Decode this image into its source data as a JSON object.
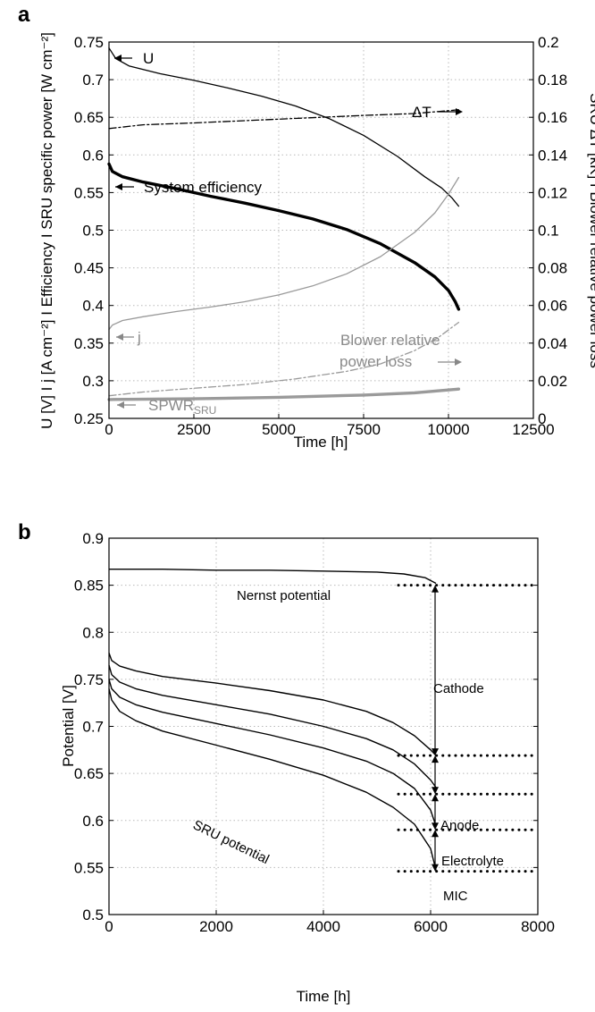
{
  "chart_data": [
    {
      "panel": "a",
      "type": "line",
      "xlabel": "Time [h]",
      "ylabel_left": "U [V] I j [A cm⁻²] I Efficiency I SRU specific power [W cm⁻²]",
      "ylabel_right": "SRU ΔT [kK] I Blower relative power loss",
      "xlim": [
        0,
        12500
      ],
      "ylim_left": [
        0.25,
        0.75
      ],
      "ylim_right": [
        0,
        0.2
      ],
      "xticks": [
        "0",
        "2500",
        "5000",
        "7500",
        "10000",
        "12500"
      ],
      "yticks_left": [
        "0.25",
        "0.3",
        "0.35",
        "0.4",
        "0.45",
        "0.5",
        "0.55",
        "0.6",
        "0.65",
        "0.7",
        "0.75"
      ],
      "yticks_right": [
        "0",
        "0.02",
        "0.04",
        "0.06",
        "0.08",
        "0.1",
        "0.12",
        "0.14",
        "0.16",
        "0.18",
        "0.2"
      ],
      "grid": true,
      "series": [
        {
          "name": "U",
          "axis": "left",
          "color": "#000000",
          "style": "solid-thin",
          "x": [
            0,
            200,
            600,
            1500,
            2500,
            3500,
            4500,
            5500,
            6500,
            7500,
            8500,
            9300,
            9800,
            10100,
            10300
          ],
          "y": [
            0.742,
            0.728,
            0.718,
            0.708,
            0.699,
            0.689,
            0.678,
            0.665,
            0.648,
            0.626,
            0.598,
            0.571,
            0.556,
            0.543,
            0.532
          ]
        },
        {
          "name": "ΔT",
          "axis": "right",
          "color": "#000000",
          "style": "dash-dot",
          "x": [
            0,
            1000,
            2500,
            5000,
            7500,
            9000,
            10300
          ],
          "y": [
            0.154,
            0.156,
            0.157,
            0.159,
            0.161,
            0.162,
            0.164
          ]
        },
        {
          "name": "System efficiency",
          "axis": "left",
          "color": "#000000",
          "style": "solid-thick",
          "x": [
            0,
            100,
            400,
            1000,
            2000,
            3000,
            4000,
            5000,
            6000,
            7000,
            8000,
            9000,
            9600,
            10000,
            10200,
            10300
          ],
          "y": [
            0.588,
            0.578,
            0.571,
            0.564,
            0.555,
            0.545,
            0.536,
            0.526,
            0.515,
            0.501,
            0.482,
            0.457,
            0.438,
            0.42,
            0.405,
            0.395
          ]
        },
        {
          "name": "j",
          "axis": "left",
          "color": "#9a9a9a",
          "style": "solid-thin",
          "x": [
            0,
            100,
            400,
            1000,
            2000,
            3000,
            4000,
            5000,
            6000,
            7000,
            8000,
            9000,
            9600,
            10000,
            10300
          ],
          "y": [
            0.368,
            0.374,
            0.38,
            0.385,
            0.392,
            0.398,
            0.405,
            0.414,
            0.426,
            0.442,
            0.465,
            0.497,
            0.523,
            0.548,
            0.57
          ]
        },
        {
          "name": "Blower relative power loss",
          "axis": "right",
          "color": "#9a9a9a",
          "style": "dash-dot",
          "x": [
            0,
            1000,
            2500,
            4000,
            5500,
            7000,
            8000,
            9000,
            9700,
            10300
          ],
          "y": [
            0.012,
            0.014,
            0.016,
            0.018,
            0.021,
            0.025,
            0.029,
            0.036,
            0.043,
            0.051
          ]
        },
        {
          "name": "SPWR_SRU",
          "axis": "left",
          "color": "#9a9a9a",
          "style": "solid-thick",
          "x": [
            0,
            2500,
            5000,
            7500,
            9000,
            10300
          ],
          "y": [
            0.275,
            0.276,
            0.278,
            0.281,
            0.284,
            0.289
          ]
        }
      ],
      "annotations": {
        "u": "U",
        "dt": "ΔT",
        "eff": "System efficiency",
        "j": "j",
        "blower1": "Blower relative",
        "blower2": "power loss",
        "spwr_main": "SPWR",
        "spwr_sub": "SRU"
      }
    },
    {
      "panel": "b",
      "type": "line",
      "xlabel": "Time [h]",
      "ylabel": "Potential [V]",
      "xlim": [
        0,
        8000
      ],
      "ylim": [
        0.5,
        0.9
      ],
      "xticks": [
        "0",
        "2000",
        "4000",
        "6000",
        "8000"
      ],
      "yticks": [
        "0.5",
        "0.55",
        "0.6",
        "0.65",
        "0.7",
        "0.75",
        "0.8",
        "0.85",
        "0.9"
      ],
      "grid": true,
      "series": [
        {
          "name": "Nernst potential",
          "x": [
            0,
            1000,
            2000,
            3000,
            4000,
            5000,
            5500,
            5900,
            6100
          ],
          "y": [
            0.867,
            0.867,
            0.866,
            0.866,
            0.865,
            0.864,
            0.862,
            0.858,
            0.852
          ]
        },
        {
          "x": [
            0,
            50,
            200,
            500,
            1000,
            2000,
            3000,
            4000,
            4800,
            5300,
            5700,
            6000,
            6100
          ],
          "y": [
            0.778,
            0.77,
            0.764,
            0.759,
            0.753,
            0.746,
            0.738,
            0.728,
            0.716,
            0.704,
            0.69,
            0.675,
            0.669
          ]
        },
        {
          "x": [
            0,
            50,
            200,
            500,
            1000,
            2000,
            3000,
            4000,
            4800,
            5300,
            5700,
            6000,
            6100
          ],
          "y": [
            0.765,
            0.755,
            0.747,
            0.74,
            0.733,
            0.723,
            0.713,
            0.7,
            0.687,
            0.675,
            0.66,
            0.643,
            0.635
          ]
        },
        {
          "x": [
            0,
            50,
            200,
            500,
            1000,
            2000,
            3000,
            4000,
            4800,
            5300,
            5700,
            6000,
            6100
          ],
          "y": [
            0.75,
            0.74,
            0.731,
            0.723,
            0.715,
            0.703,
            0.691,
            0.677,
            0.663,
            0.65,
            0.634,
            0.611,
            0.594
          ]
        },
        {
          "name": "SRU potential",
          "x": [
            0,
            50,
            200,
            500,
            1000,
            2000,
            3000,
            4000,
            4800,
            5300,
            5700,
            6000,
            6100
          ],
          "y": [
            0.74,
            0.728,
            0.716,
            0.706,
            0.695,
            0.68,
            0.665,
            0.648,
            0.63,
            0.614,
            0.596,
            0.57,
            0.547
          ]
        }
      ],
      "dotted_levels": [
        0.85,
        0.669,
        0.628,
        0.59,
        0.546
      ],
      "annotations": {
        "nernst": "Nernst potential",
        "cathode": "Cathode",
        "anode": "Anode",
        "electrolyte": "Electrolyte",
        "mic": "MIC",
        "sru": "SRU potential"
      }
    }
  ]
}
